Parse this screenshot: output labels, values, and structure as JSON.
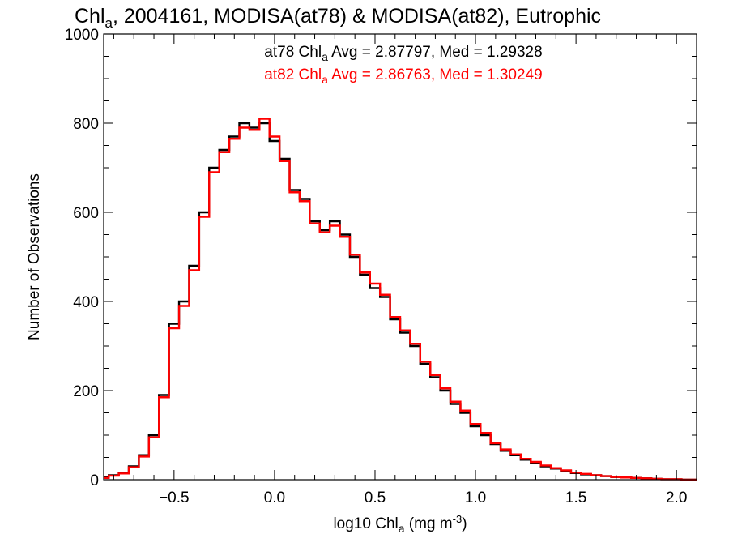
{
  "chart_data": {
    "type": "line",
    "step": true,
    "title_main": "Chl",
    "title_sub": "a",
    "title_rest": ", 2004161, MODISA(at78) & MODISA(at82), Eutrophic",
    "xlabel_main": "log10 Chl",
    "xlabel_sub": "a",
    "xlabel_rest": " (mg m",
    "xlabel_sup": "-3",
    "xlabel_close": ")",
    "ylabel": "Number of Observations",
    "xlim": [
      -0.85,
      2.1
    ],
    "ylim": [
      0,
      1000
    ],
    "xticks": [
      -0.5,
      0.0,
      0.5,
      1.0,
      1.5,
      2.0
    ],
    "xtick_labels": [
      "−0.5",
      "0.0",
      "0.5",
      "1.0",
      "1.5",
      "2.0"
    ],
    "yticks": [
      0,
      200,
      400,
      600,
      800,
      1000
    ],
    "ytick_labels": [
      "0",
      "200",
      "400",
      "600",
      "800",
      "1000"
    ],
    "grid": false,
    "colors": {
      "at78": "#000000",
      "at82": "#ff0000"
    },
    "annotations": [
      {
        "series": "at78",
        "pre": "at78 Chl",
        "sub": "a",
        "post": " Avg = 2.87797, Med = 1.29328"
      },
      {
        "series": "at82",
        "pre": "at82 Chl",
        "sub": "a",
        "post": " Avg = 2.86763, Med = 1.30249"
      }
    ],
    "series": [
      {
        "key": "at78",
        "x": [
          -0.85,
          -0.8,
          -0.75,
          -0.7,
          -0.65,
          -0.6,
          -0.55,
          -0.5,
          -0.45,
          -0.4,
          -0.35,
          -0.3,
          -0.25,
          -0.2,
          -0.15,
          -0.1,
          -0.05,
          0.0,
          0.05,
          0.1,
          0.15,
          0.2,
          0.25,
          0.3,
          0.35,
          0.4,
          0.45,
          0.5,
          0.55,
          0.6,
          0.65,
          0.7,
          0.75,
          0.8,
          0.85,
          0.9,
          0.95,
          1.0,
          1.05,
          1.1,
          1.15,
          1.2,
          1.25,
          1.3,
          1.35,
          1.4,
          1.45,
          1.5,
          1.55,
          1.6,
          1.65,
          1.7,
          1.75,
          1.8,
          1.85,
          1.9,
          1.95,
          2.0,
          2.05,
          2.1
        ],
        "y": [
          5,
          10,
          15,
          30,
          55,
          100,
          190,
          350,
          400,
          480,
          600,
          700,
          740,
          770,
          800,
          790,
          800,
          760,
          720,
          650,
          630,
          580,
          560,
          580,
          550,
          500,
          460,
          430,
          410,
          360,
          330,
          300,
          260,
          230,
          200,
          170,
          150,
          120,
          100,
          80,
          65,
          55,
          45,
          38,
          30,
          25,
          20,
          15,
          12,
          10,
          8,
          6,
          5,
          4,
          3,
          2,
          1,
          1,
          0,
          0
        ]
      },
      {
        "key": "at82",
        "x": [
          -0.85,
          -0.8,
          -0.75,
          -0.7,
          -0.65,
          -0.6,
          -0.55,
          -0.5,
          -0.45,
          -0.4,
          -0.35,
          -0.3,
          -0.25,
          -0.2,
          -0.15,
          -0.1,
          -0.05,
          0.0,
          0.05,
          0.1,
          0.15,
          0.2,
          0.25,
          0.3,
          0.35,
          0.4,
          0.45,
          0.5,
          0.55,
          0.6,
          0.65,
          0.7,
          0.75,
          0.8,
          0.85,
          0.9,
          0.95,
          1.0,
          1.05,
          1.1,
          1.15,
          1.2,
          1.25,
          1.3,
          1.35,
          1.4,
          1.45,
          1.5,
          1.55,
          1.6,
          1.65,
          1.7,
          1.75,
          1.8,
          1.85,
          1.9,
          1.95,
          2.0,
          2.05,
          2.1
        ],
        "y": [
          4,
          9,
          14,
          28,
          52,
          95,
          185,
          340,
          390,
          470,
          590,
          690,
          735,
          765,
          790,
          785,
          810,
          770,
          715,
          645,
          625,
          575,
          555,
          570,
          545,
          505,
          465,
          440,
          415,
          365,
          335,
          305,
          265,
          235,
          205,
          175,
          155,
          125,
          105,
          82,
          68,
          57,
          47,
          40,
          32,
          26,
          21,
          16,
          13,
          10,
          8,
          6,
          5,
          4,
          3,
          2,
          1,
          1,
          0,
          0
        ]
      }
    ]
  }
}
